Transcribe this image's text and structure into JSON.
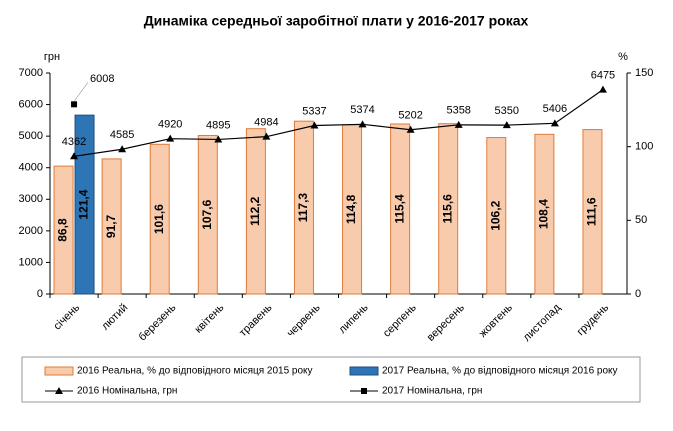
{
  "chart_data": {
    "type": "bar-line",
    "title": "Динаміка середньої заробітної плати у 2016-2017 роках",
    "ylabel": "грн",
    "y2label": "%",
    "categories": [
      "січень",
      "лютий",
      "березень",
      "квітень",
      "травень",
      "червень",
      "липень",
      "серпень",
      "вересень",
      "жовтень",
      "листопад",
      "грудень"
    ],
    "ylim": [
      0,
      7000
    ],
    "yticks": [
      0,
      1000,
      2000,
      3000,
      4000,
      5000,
      6000,
      7000
    ],
    "y2lim": [
      0,
      150
    ],
    "y2ticks": [
      0,
      50,
      100,
      150
    ],
    "series": [
      {
        "name": "2016 Реальна, % до відповідного місяця 2015 року",
        "kind": "bar",
        "axis": "y2",
        "color": "#f8cbad",
        "edge": "#e07b39",
        "values": [
          86.8,
          91.7,
          101.6,
          107.6,
          112.2,
          117.3,
          114.8,
          115.4,
          115.6,
          106.2,
          108.4,
          111.6
        ],
        "value_labels": [
          "86,8",
          "91,7",
          "101,6",
          "107,6",
          "112,2",
          "117,3",
          "114,8",
          "115,4",
          "115,6",
          "106,2",
          "108,4",
          "111,6"
        ]
      },
      {
        "name": "2017 Реальна, % до відповідного місяця 2016 року",
        "kind": "bar",
        "axis": "y2",
        "color": "#2e75b6",
        "edge": "#1f4e79",
        "values": [
          121.4,
          null,
          null,
          null,
          null,
          null,
          null,
          null,
          null,
          null,
          null,
          null
        ],
        "value_labels": [
          "121,4",
          null,
          null,
          null,
          null,
          null,
          null,
          null,
          null,
          null,
          null,
          null
        ]
      },
      {
        "name": "2016 Номінальна, грн",
        "kind": "line",
        "marker": "triangle",
        "color": "#000000",
        "values": [
          4362,
          4585,
          4920,
          4895,
          4984,
          5337,
          5374,
          5202,
          5358,
          5350,
          5406,
          6475
        ]
      },
      {
        "name": "2017 Номінальна, грн",
        "kind": "line",
        "marker": "square",
        "color": "#000000",
        "values": [
          6008,
          null,
          null,
          null,
          null,
          null,
          null,
          null,
          null,
          null,
          null,
          null
        ]
      }
    ]
  }
}
